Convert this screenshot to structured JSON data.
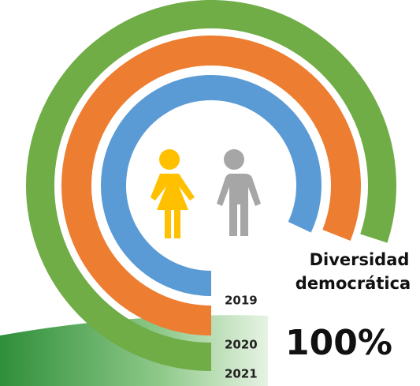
{
  "chart_data": {
    "type": "radial_bar",
    "title": [
      "Diversidad",
      "democrática"
    ],
    "annotation": "100%",
    "ylim": [
      0,
      100
    ],
    "series": [
      {
        "name": "2019",
        "color": "#5b9bd5",
        "values": [
          82
        ]
      },
      {
        "name": "2020",
        "color": "#ed7d31",
        "values": [
          81
        ]
      },
      {
        "name": "2021",
        "color": "#70ad47",
        "values": [
          80
        ]
      }
    ]
  }
}
